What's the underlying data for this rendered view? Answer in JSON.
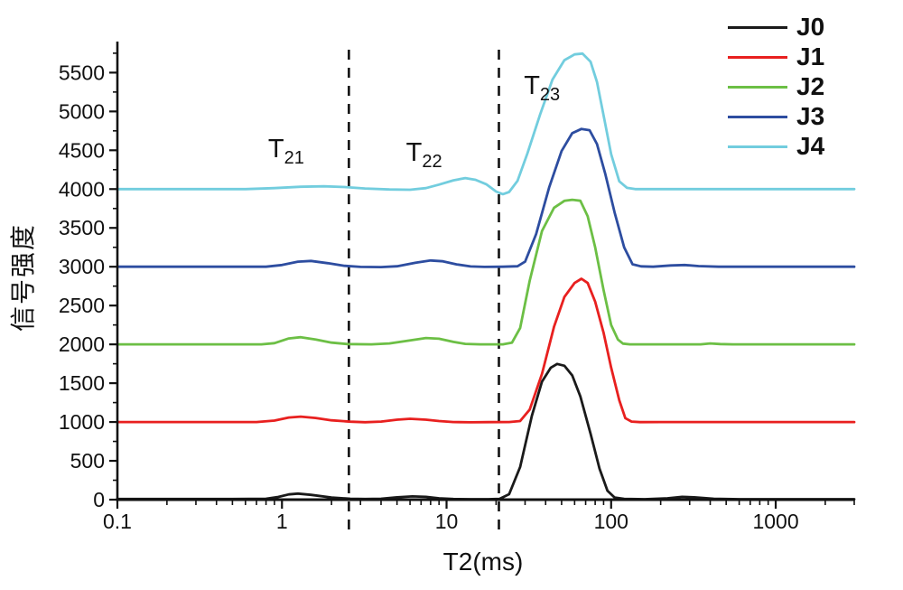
{
  "chart_data": {
    "type": "line",
    "title": "",
    "xlabel": "T2(ms)",
    "ylabel": "信号强度",
    "x_scale": "log",
    "xlim": [
      0.1,
      3000
    ],
    "ylim": [
      0,
      5900
    ],
    "grid": false,
    "legend_position": "top-right",
    "x_ticks": [
      0.1,
      1,
      10,
      100,
      1000
    ],
    "x_tick_labels": [
      "0.1",
      "1",
      "10",
      "100",
      "1000"
    ],
    "y_ticks": [
      0,
      500,
      1000,
      1500,
      2000,
      2500,
      3000,
      3500,
      4000,
      4500,
      5000,
      5500
    ],
    "y_minor_step": 250,
    "reference_lines_x_ms": [
      2.55,
      20.8
    ],
    "annotations": [
      {
        "main": "T",
        "sub": "21",
        "x_ms": 1.06,
        "y_val": 4480
      },
      {
        "main": "T",
        "sub": "22",
        "x_ms": 7.3,
        "y_val": 4430
      },
      {
        "main": "T",
        "sub": "23",
        "x_ms": 38,
        "y_val": 5300
      }
    ],
    "series": [
      {
        "name": "J0",
        "color": "#1a1a1a",
        "baseline": 0,
        "points": [
          [
            0.1,
            8
          ],
          [
            0.5,
            8
          ],
          [
            0.8,
            12
          ],
          [
            0.95,
            35
          ],
          [
            1.1,
            68
          ],
          [
            1.25,
            78
          ],
          [
            1.5,
            62
          ],
          [
            2.0,
            28
          ],
          [
            2.6,
            12
          ],
          [
            3.2,
            8
          ],
          [
            4.0,
            12
          ],
          [
            5.0,
            30
          ],
          [
            6.2,
            42
          ],
          [
            7.5,
            36
          ],
          [
            9.0,
            18
          ],
          [
            11,
            8
          ],
          [
            14,
            6
          ],
          [
            18,
            6
          ],
          [
            21,
            10
          ],
          [
            24,
            70
          ],
          [
            28,
            420
          ],
          [
            33,
            1080
          ],
          [
            38,
            1520
          ],
          [
            43,
            1700
          ],
          [
            47,
            1748
          ],
          [
            52,
            1725
          ],
          [
            58,
            1600
          ],
          [
            65,
            1330
          ],
          [
            75,
            850
          ],
          [
            85,
            400
          ],
          [
            95,
            115
          ],
          [
            105,
            28
          ],
          [
            120,
            10
          ],
          [
            160,
            6
          ],
          [
            220,
            18
          ],
          [
            270,
            36
          ],
          [
            320,
            30
          ],
          [
            420,
            12
          ],
          [
            600,
            6
          ],
          [
            3000,
            6
          ]
        ]
      },
      {
        "name": "J1",
        "color": "#e8201f",
        "baseline": 1000,
        "points": [
          [
            0.1,
            1000
          ],
          [
            0.7,
            1000
          ],
          [
            0.9,
            1018
          ],
          [
            1.1,
            1058
          ],
          [
            1.3,
            1070
          ],
          [
            1.6,
            1052
          ],
          [
            2.0,
            1022
          ],
          [
            2.6,
            1004
          ],
          [
            3.2,
            997
          ],
          [
            4.0,
            1006
          ],
          [
            5.0,
            1030
          ],
          [
            6.0,
            1042
          ],
          [
            7.5,
            1030
          ],
          [
            9.0,
            1012
          ],
          [
            11,
            1000
          ],
          [
            14,
            996
          ],
          [
            18,
            998
          ],
          [
            24,
            1000
          ],
          [
            28,
            1012
          ],
          [
            32,
            1160
          ],
          [
            38,
            1620
          ],
          [
            45,
            2230
          ],
          [
            52,
            2610
          ],
          [
            60,
            2790
          ],
          [
            66,
            2845
          ],
          [
            72,
            2790
          ],
          [
            80,
            2550
          ],
          [
            90,
            2150
          ],
          [
            100,
            1700
          ],
          [
            112,
            1280
          ],
          [
            122,
            1050
          ],
          [
            133,
            1005
          ],
          [
            150,
            998
          ],
          [
            200,
            1000
          ],
          [
            3000,
            1000
          ]
        ]
      },
      {
        "name": "J2",
        "color": "#6cbf45",
        "baseline": 2000,
        "points": [
          [
            0.1,
            2000
          ],
          [
            0.75,
            2000
          ],
          [
            0.9,
            2016
          ],
          [
            1.1,
            2076
          ],
          [
            1.3,
            2092
          ],
          [
            1.6,
            2062
          ],
          [
            2.0,
            2022
          ],
          [
            2.5,
            2004
          ],
          [
            3.5,
            2000
          ],
          [
            4.5,
            2012
          ],
          [
            6.0,
            2052
          ],
          [
            7.5,
            2082
          ],
          [
            9.0,
            2072
          ],
          [
            11,
            2032
          ],
          [
            13,
            2006
          ],
          [
            16,
            2000
          ],
          [
            22,
            2000
          ],
          [
            25,
            2022
          ],
          [
            28,
            2210
          ],
          [
            32,
            2820
          ],
          [
            38,
            3460
          ],
          [
            45,
            3760
          ],
          [
            52,
            3848
          ],
          [
            58,
            3862
          ],
          [
            65,
            3850
          ],
          [
            72,
            3650
          ],
          [
            80,
            3250
          ],
          [
            90,
            2700
          ],
          [
            100,
            2250
          ],
          [
            110,
            2062
          ],
          [
            118,
            2010
          ],
          [
            130,
            2000
          ],
          [
            350,
            2000
          ],
          [
            400,
            2012
          ],
          [
            460,
            2004
          ],
          [
            550,
            2000
          ],
          [
            3000,
            2000
          ]
        ]
      },
      {
        "name": "J3",
        "color": "#2d4da0",
        "baseline": 3000,
        "points": [
          [
            0.1,
            3000
          ],
          [
            0.8,
            3000
          ],
          [
            1.0,
            3022
          ],
          [
            1.25,
            3065
          ],
          [
            1.5,
            3075
          ],
          [
            1.9,
            3046
          ],
          [
            2.4,
            3012
          ],
          [
            3.0,
            2998
          ],
          [
            4.0,
            2995
          ],
          [
            5.0,
            3006
          ],
          [
            6.5,
            3052
          ],
          [
            8.0,
            3080
          ],
          [
            9.5,
            3070
          ],
          [
            11.5,
            3030
          ],
          [
            14,
            3004
          ],
          [
            17,
            2998
          ],
          [
            22,
            3000
          ],
          [
            27,
            3006
          ],
          [
            30,
            3065
          ],
          [
            35,
            3420
          ],
          [
            42,
            4020
          ],
          [
            50,
            4490
          ],
          [
            58,
            4720
          ],
          [
            66,
            4775
          ],
          [
            74,
            4758
          ],
          [
            82,
            4580
          ],
          [
            92,
            4200
          ],
          [
            105,
            3700
          ],
          [
            120,
            3250
          ],
          [
            135,
            3032
          ],
          [
            152,
            3005
          ],
          [
            180,
            3000
          ],
          [
            230,
            3016
          ],
          [
            280,
            3022
          ],
          [
            340,
            3008
          ],
          [
            450,
            3000
          ],
          [
            3000,
            3000
          ]
        ]
      },
      {
        "name": "J4",
        "color": "#72cdde",
        "baseline": 4000,
        "points": [
          [
            0.1,
            4000
          ],
          [
            0.6,
            4000
          ],
          [
            0.9,
            4012
          ],
          [
            1.3,
            4030
          ],
          [
            1.8,
            4036
          ],
          [
            2.4,
            4026
          ],
          [
            3.2,
            4008
          ],
          [
            4.5,
            3995
          ],
          [
            6.0,
            3992
          ],
          [
            7.5,
            4012
          ],
          [
            9.0,
            4058
          ],
          [
            11,
            4112
          ],
          [
            13,
            4142
          ],
          [
            15,
            4120
          ],
          [
            17.5,
            4060
          ],
          [
            20,
            3968
          ],
          [
            22,
            3935
          ],
          [
            24,
            3962
          ],
          [
            27,
            4105
          ],
          [
            31,
            4460
          ],
          [
            37,
            4960
          ],
          [
            44,
            5410
          ],
          [
            52,
            5660
          ],
          [
            60,
            5735
          ],
          [
            67,
            5745
          ],
          [
            75,
            5640
          ],
          [
            82,
            5380
          ],
          [
            90,
            4950
          ],
          [
            100,
            4450
          ],
          [
            112,
            4100
          ],
          [
            125,
            4016
          ],
          [
            140,
            4000
          ],
          [
            3000,
            4000
          ]
        ]
      }
    ]
  }
}
